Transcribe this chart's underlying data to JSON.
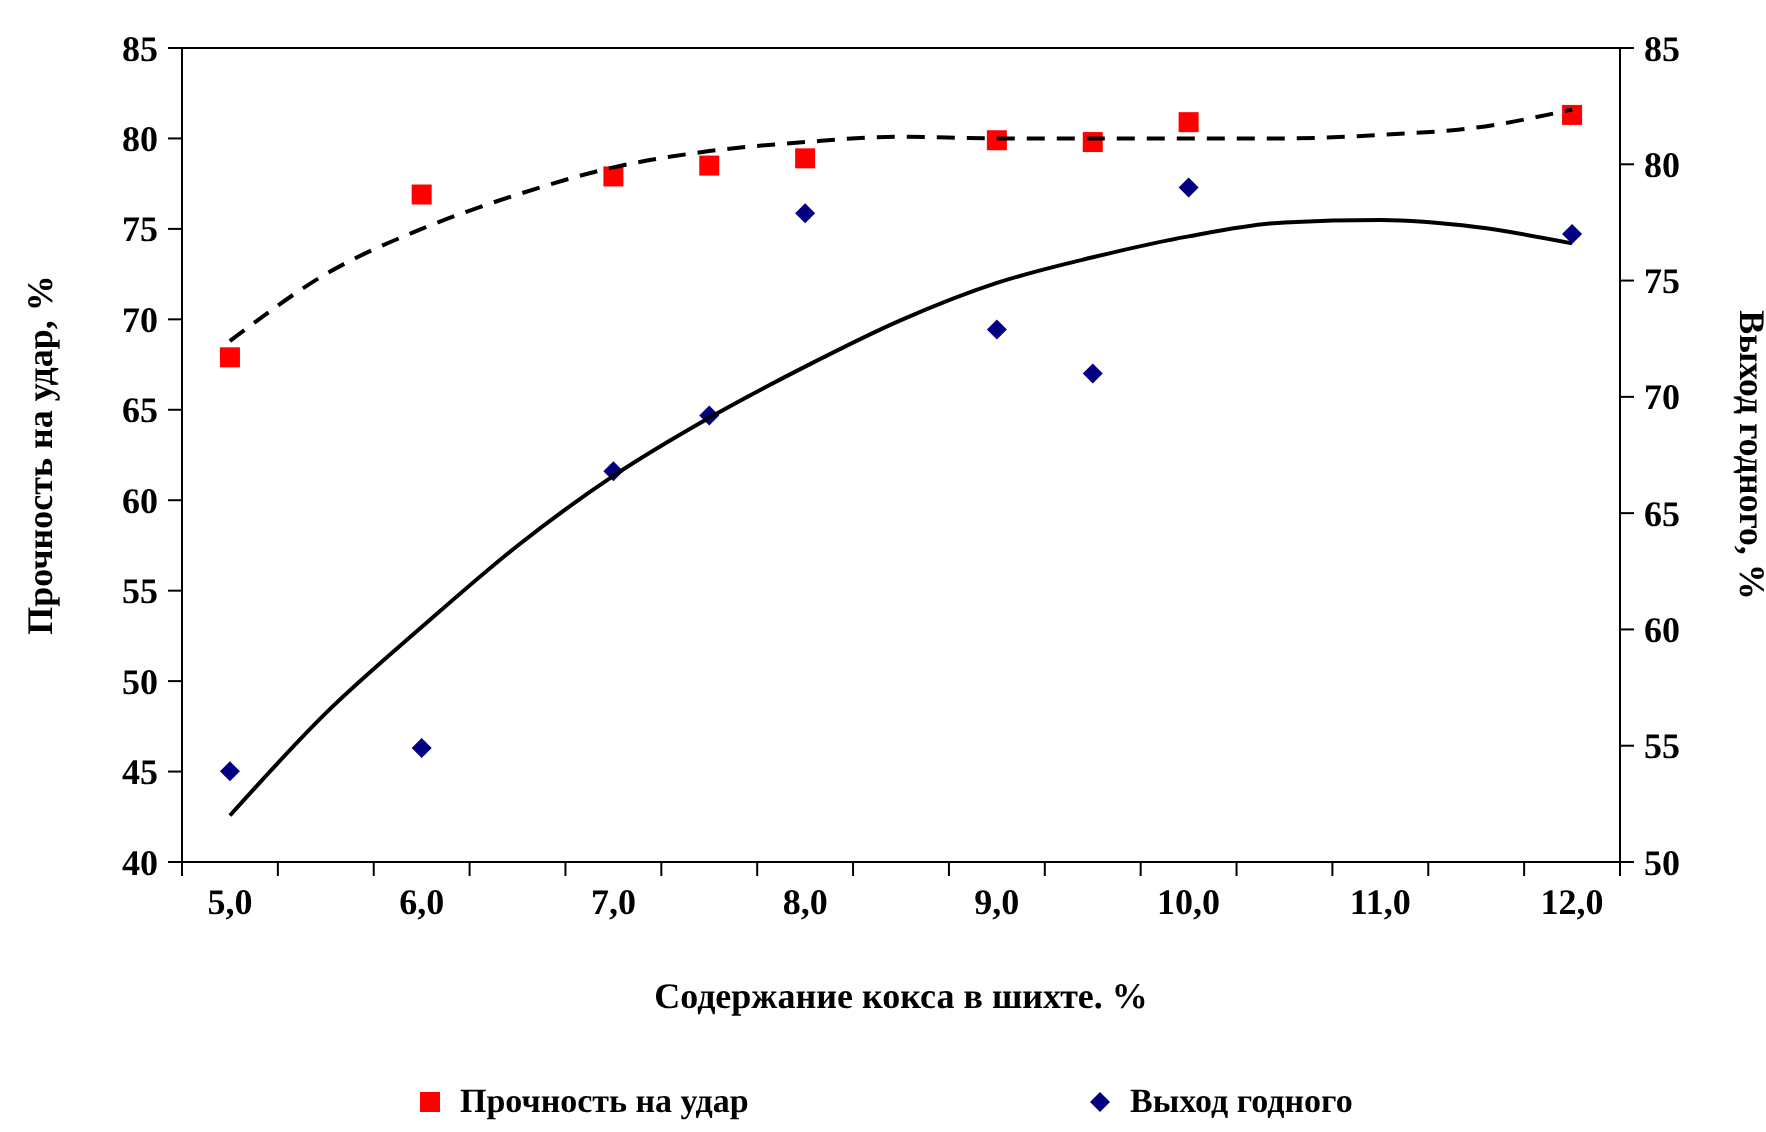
{
  "chart_data": {
    "type": "scatter",
    "xlabel": "Содержание кокса в шихте. %",
    "ylabel": "Прочность на удар, %",
    "y2label": "Выход годного, %",
    "categories": [
      "5,0",
      null,
      "6,0",
      null,
      "7,0",
      null,
      "8,0",
      null,
      "9,0",
      null,
      "10,0",
      null,
      "11,0",
      null,
      "12,0"
    ],
    "ylim": [
      40,
      85
    ],
    "yticks": [
      40,
      45,
      50,
      55,
      60,
      65,
      70,
      75,
      80,
      85
    ],
    "y2lim": [
      50,
      85
    ],
    "y2ticks": [
      50,
      55,
      60,
      65,
      70,
      75,
      80,
      85
    ],
    "legend": "bottom",
    "series": [
      {
        "name": "Прочность на удар",
        "color": "#ff0000",
        "marker": "square",
        "values": [
          67.9,
          null,
          76.9,
          null,
          77.9,
          78.5,
          78.9,
          null,
          79.9,
          79.8,
          80.9,
          null,
          null,
          null,
          81.3
        ]
      },
      {
        "name": "Выход годного",
        "axis": "y2",
        "color": "#000080",
        "marker": "diamond",
        "values": [
          53.9,
          null,
          54.9,
          null,
          66.8,
          69.2,
          77.9,
          null,
          72.9,
          71.0,
          79.0,
          null,
          null,
          null,
          77.0
        ]
      },
      {
        "type": "line",
        "color": "#000000",
        "marker": "none",
        "line_style": "dashed",
        "values": [
          68.8,
          72.5,
          75.0,
          76.9,
          78.4,
          79.3,
          79.8,
          80.1,
          80.0,
          80.0,
          80.0,
          80.0,
          80.2,
          80.6,
          81.6
        ]
      },
      {
        "type": "line",
        "axis": "y2",
        "color": "#000000",
        "marker": "none",
        "line_style": "solid",
        "values": [
          52.0,
          56.4,
          60.1,
          63.6,
          66.6,
          69.1,
          71.3,
          73.3,
          74.9,
          76.0,
          76.9,
          77.5,
          77.6,
          77.3,
          76.6
        ]
      }
    ]
  }
}
